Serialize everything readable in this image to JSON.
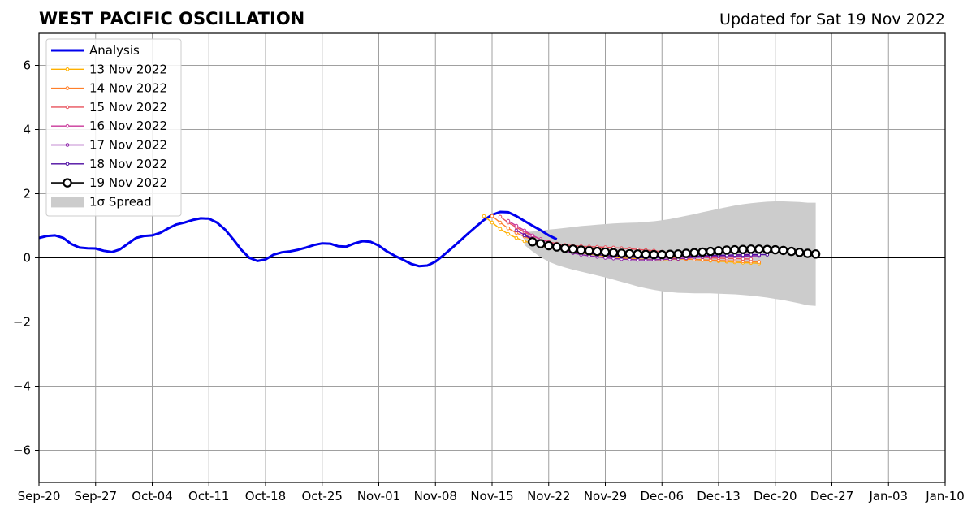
{
  "header": {
    "title": "WEST PACIFIC OSCILLATION",
    "updated": "Updated for Sat 19 Nov 2022"
  },
  "chart_data": {
    "type": "line",
    "title": "WEST PACIFIC OSCILLATION",
    "subtitle": "Updated for Sat 19 Nov 2022",
    "xlim": [
      "2022-09-20",
      "2023-01-10"
    ],
    "ylim": [
      -7,
      7
    ],
    "x_ticks": [
      "Sep-20",
      "Sep-27",
      "Oct-04",
      "Oct-11",
      "Oct-18",
      "Oct-25",
      "Nov-01",
      "Nov-08",
      "Nov-15",
      "Nov-22",
      "Nov-29",
      "Dec-06",
      "Dec-13",
      "Dec-20",
      "Dec-27",
      "Jan-03",
      "Jan-10"
    ],
    "y_ticks": [
      6,
      4,
      2,
      0,
      -2,
      -4,
      -6
    ],
    "y_tick_labels": [
      "6",
      "4",
      "2",
      "0",
      "−2",
      "−4",
      "−6"
    ],
    "grid": true,
    "legend_position": "top-left",
    "series": [
      {
        "name": "Analysis",
        "color": "#0000ee",
        "start_date": "2022-09-20",
        "values": [
          0.62,
          0.68,
          0.7,
          0.62,
          0.43,
          0.32,
          0.3,
          0.29,
          0.22,
          0.18,
          0.26,
          0.44,
          0.62,
          0.68,
          0.7,
          0.78,
          0.92,
          1.04,
          1.1,
          1.18,
          1.23,
          1.22,
          1.1,
          0.88,
          0.58,
          0.25,
          0.0,
          -0.1,
          -0.05,
          0.1,
          0.17,
          0.2,
          0.25,
          0.32,
          0.4,
          0.45,
          0.44,
          0.36,
          0.35,
          0.45,
          0.52,
          0.5,
          0.38,
          0.2,
          0.06,
          -0.06,
          -0.19,
          -0.26,
          -0.24,
          -0.12,
          0.08,
          0.3,
          0.52,
          0.75,
          0.97,
          1.18,
          1.34,
          1.43,
          1.42,
          1.3,
          1.15,
          1.0,
          0.86,
          0.7,
          0.58
        ]
      },
      {
        "name": "13 Nov 2022",
        "color": "#ffb000",
        "start_date": "2022-11-14",
        "values": [
          1.3,
          1.1,
          0.9,
          0.74,
          0.62,
          0.52,
          0.45,
          0.38,
          0.32,
          0.28,
          0.24,
          0.2,
          0.16,
          0.12,
          0.08,
          0.05,
          0.02,
          0.0,
          -0.02,
          -0.04,
          -0.05,
          -0.06,
          -0.06,
          -0.05,
          -0.04,
          -0.04,
          -0.05,
          -0.07,
          -0.09,
          -0.11,
          -0.12,
          -0.14,
          -0.15,
          -0.16,
          -0.17
        ]
      },
      {
        "name": "14 Nov 2022",
        "color": "#ff7f2a",
        "start_date": "2022-11-15",
        "values": [
          1.3,
          1.1,
          0.92,
          0.78,
          0.66,
          0.56,
          0.48,
          0.42,
          0.38,
          0.35,
          0.32,
          0.3,
          0.28,
          0.27,
          0.25,
          0.22,
          0.2,
          0.16,
          0.12,
          0.08,
          0.05,
          0.02,
          0.0,
          -0.02,
          -0.03,
          -0.05,
          -0.06,
          -0.07,
          -0.08,
          -0.09,
          -0.1,
          -0.11,
          -0.12,
          -0.13
        ]
      },
      {
        "name": "15 Nov 2022",
        "color": "#e8505b",
        "start_date": "2022-11-16",
        "values": [
          1.28,
          1.1,
          0.95,
          0.8,
          0.68,
          0.58,
          0.5,
          0.44,
          0.4,
          0.38,
          0.36,
          0.35,
          0.34,
          0.33,
          0.32,
          0.3,
          0.28,
          0.26,
          0.24,
          0.22,
          0.19,
          0.16,
          0.12,
          0.08,
          0.05,
          0.02,
          0.0,
          -0.01,
          -0.02,
          -0.02,
          -0.03,
          -0.04
        ]
      },
      {
        "name": "16 Nov 2022",
        "color": "#c9379a",
        "start_date": "2022-11-17",
        "values": [
          1.15,
          1.0,
          0.85,
          0.7,
          0.58,
          0.48,
          0.4,
          0.34,
          0.28,
          0.24,
          0.2,
          0.16,
          0.12,
          0.09,
          0.07,
          0.05,
          0.04,
          0.05,
          0.06,
          0.05,
          0.04,
          0.03,
          0.02,
          0.03,
          0.04,
          0.06,
          0.07,
          0.08,
          0.09,
          0.1,
          0.11
        ]
      },
      {
        "name": "17 Nov 2022",
        "color": "#8b1fa8",
        "start_date": "2022-11-18",
        "values": [
          0.85,
          0.72,
          0.6,
          0.48,
          0.38,
          0.3,
          0.22,
          0.15,
          0.1,
          0.06,
          0.03,
          0.0,
          -0.02,
          -0.04,
          -0.05,
          -0.06,
          -0.06,
          -0.06,
          -0.05,
          -0.04,
          -0.03,
          -0.01,
          0.01,
          0.02,
          0.03,
          0.04,
          0.04,
          0.05,
          0.05,
          0.06,
          0.06
        ]
      },
      {
        "name": "18 Nov 2022",
        "color": "#4b0aa0",
        "start_date": "2022-11-19",
        "values": [
          0.7,
          0.58,
          0.48,
          0.4,
          0.33,
          0.27,
          0.22,
          0.18,
          0.14,
          0.1,
          0.07,
          0.05,
          0.03,
          0.02,
          0.01,
          0.0,
          0.0,
          0.01,
          0.02,
          0.03,
          0.04,
          0.05,
          0.06,
          0.07,
          0.08,
          0.08,
          0.09,
          0.09,
          0.1,
          0.1,
          0.1
        ]
      },
      {
        "name": "19 Nov 2022",
        "color": "#000000",
        "start_date": "2022-11-20",
        "values": [
          0.5,
          0.44,
          0.38,
          0.34,
          0.3,
          0.27,
          0.24,
          0.22,
          0.2,
          0.18,
          0.16,
          0.14,
          0.13,
          0.12,
          0.11,
          0.1,
          0.1,
          0.11,
          0.12,
          0.14,
          0.16,
          0.18,
          0.2,
          0.22,
          0.24,
          0.25,
          0.26,
          0.27,
          0.27,
          0.26,
          0.25,
          0.23,
          0.2,
          0.17,
          0.14,
          0.12
        ]
      }
    ],
    "spread": {
      "name": "1σ Spread",
      "color": "#cccccc",
      "start_date": "2022-11-19",
      "upper": [
        0.8,
        0.82,
        0.85,
        0.88,
        0.9,
        0.93,
        0.96,
        0.99,
        1.01,
        1.03,
        1.05,
        1.07,
        1.08,
        1.09,
        1.1,
        1.12,
        1.14,
        1.17,
        1.21,
        1.26,
        1.31,
        1.36,
        1.42,
        1.47,
        1.53,
        1.58,
        1.63,
        1.67,
        1.7,
        1.73,
        1.75,
        1.76,
        1.76,
        1.75,
        1.74,
        1.72,
        1.72
      ],
      "lower": [
        0.4,
        0.2,
        0.02,
        -0.12,
        -0.22,
        -0.3,
        -0.37,
        -0.43,
        -0.49,
        -0.55,
        -0.61,
        -0.68,
        -0.75,
        -0.82,
        -0.89,
        -0.95,
        -1.0,
        -1.04,
        -1.07,
        -1.09,
        -1.1,
        -1.11,
        -1.11,
        -1.11,
        -1.12,
        -1.13,
        -1.14,
        -1.16,
        -1.18,
        -1.21,
        -1.24,
        -1.28,
        -1.32,
        -1.37,
        -1.42,
        -1.48,
        -1.5
      ]
    }
  }
}
